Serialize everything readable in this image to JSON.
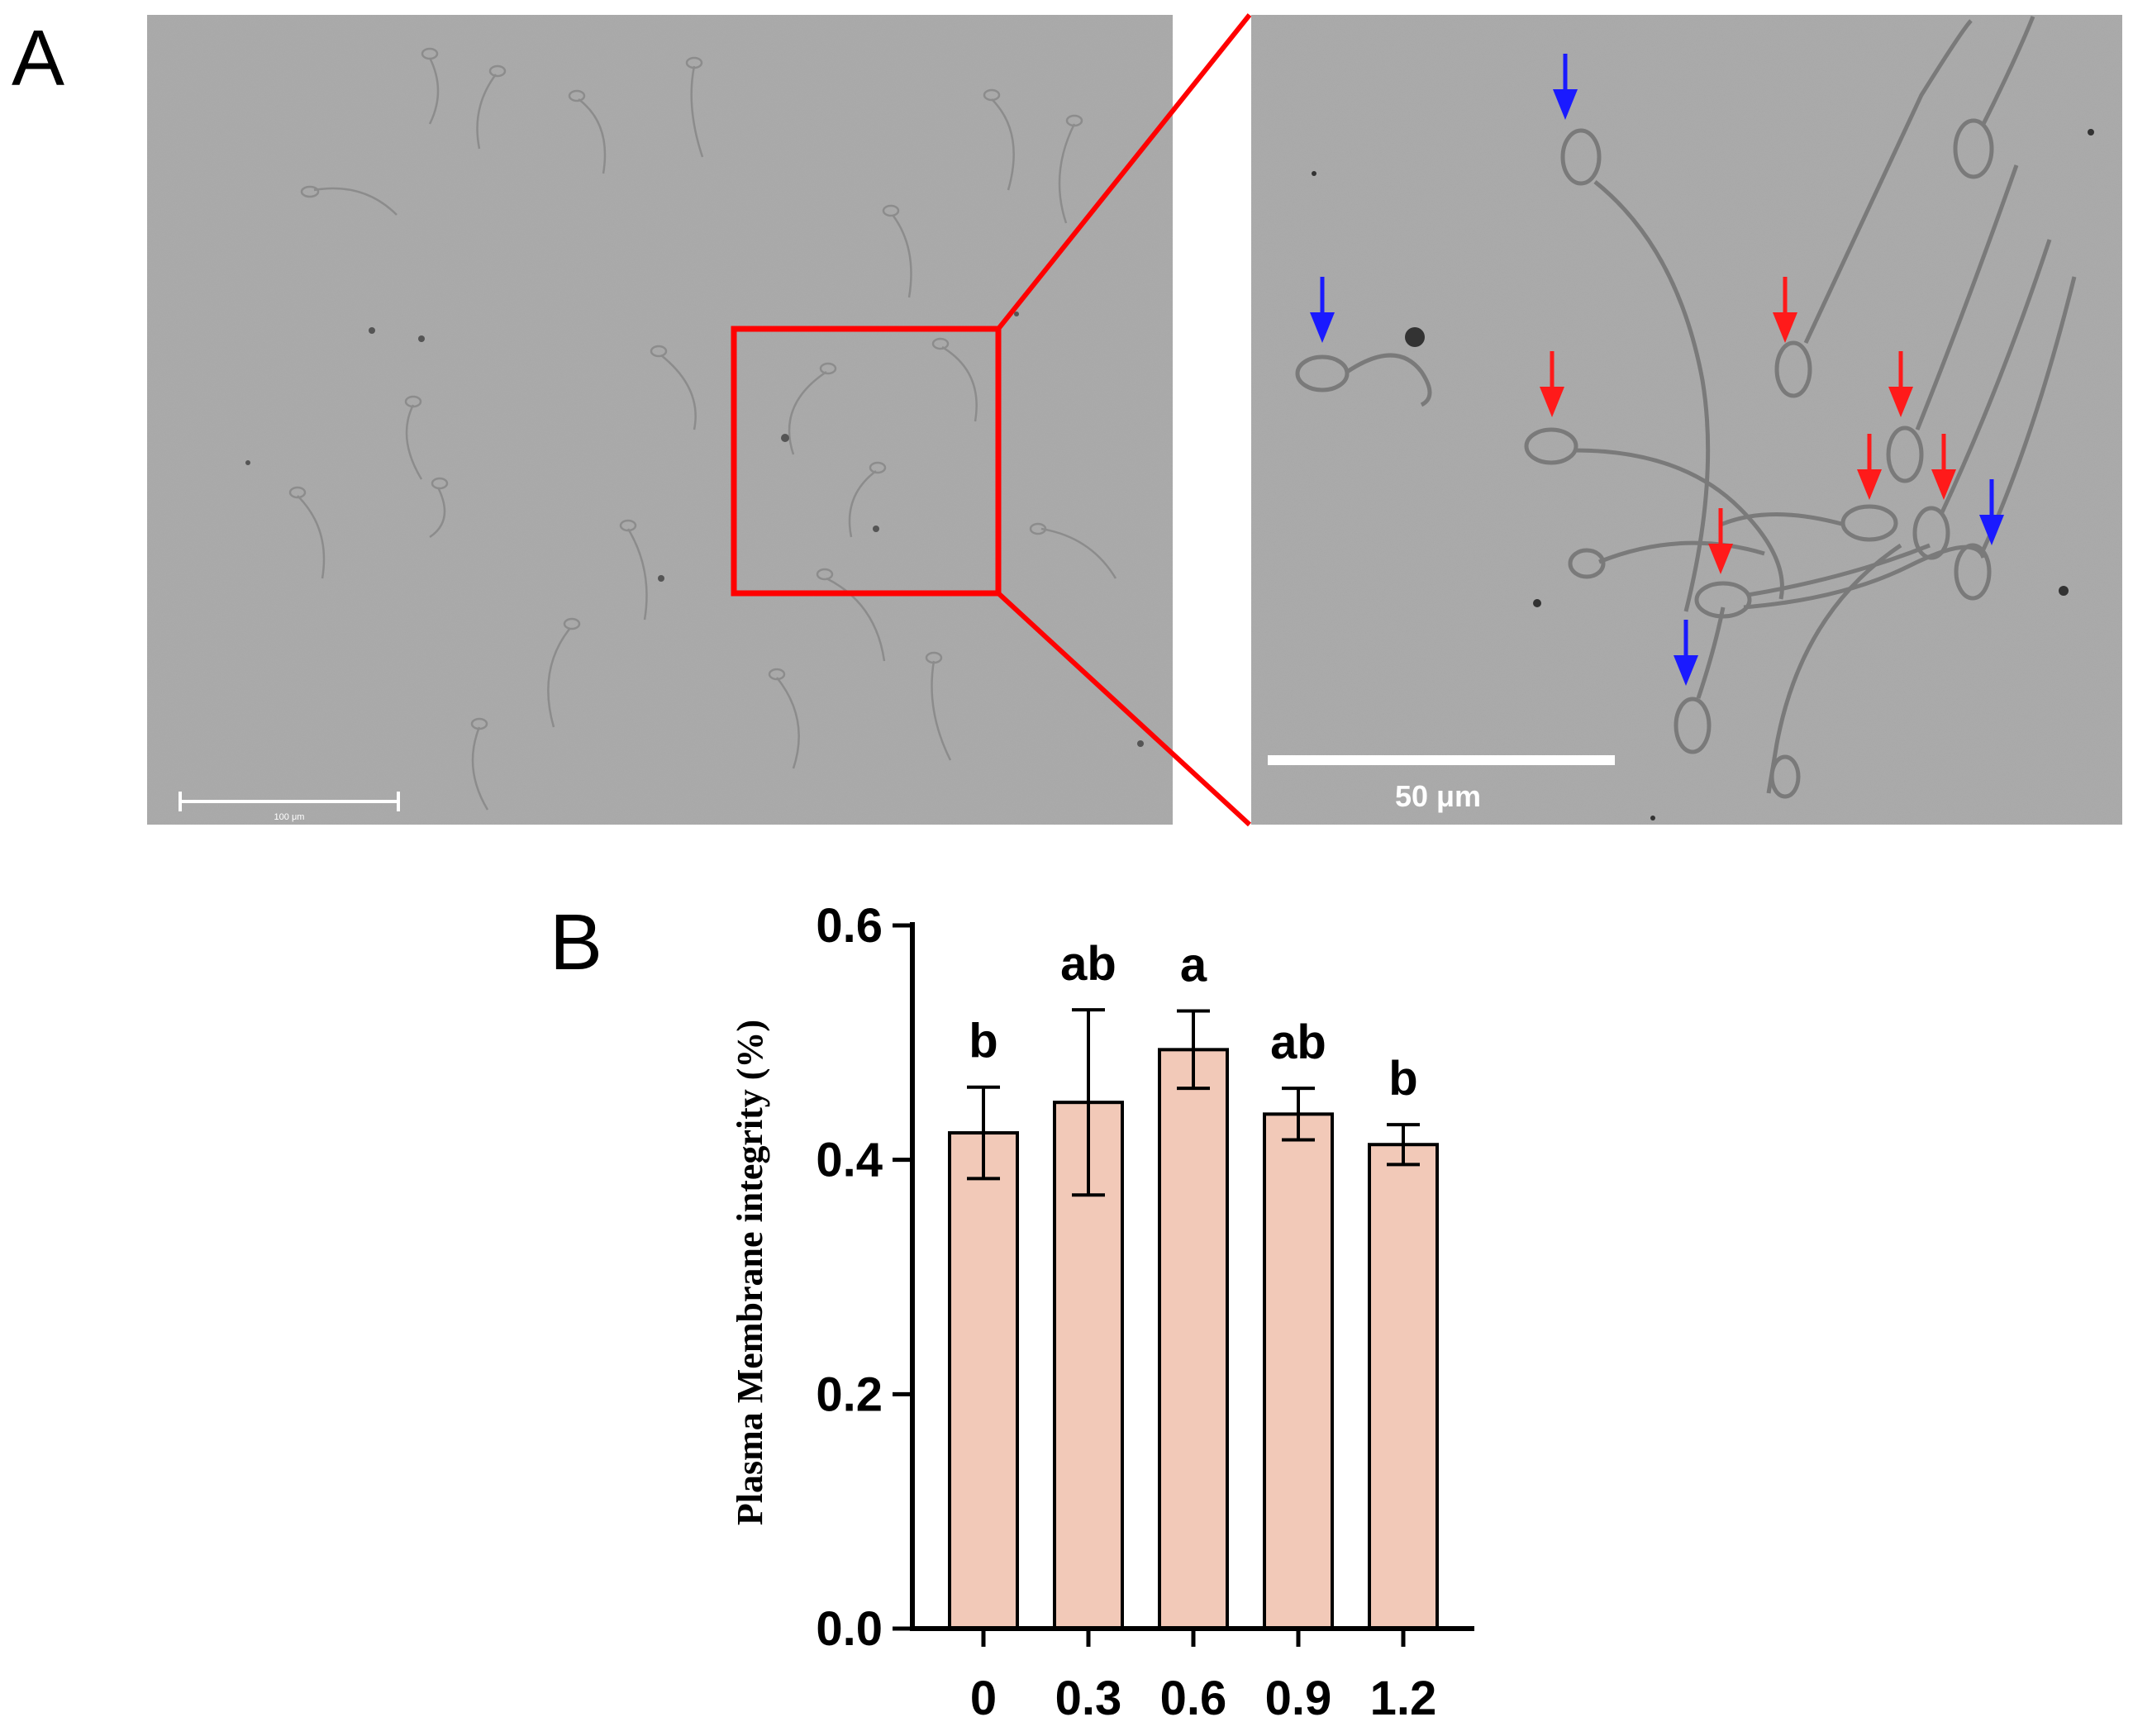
{
  "panel_a": {
    "label": "A",
    "scalebar_small_label": "100 μm",
    "scalebar_large_label": "50 μm",
    "colors": {
      "background": "#a9a9a9",
      "zoom_box": "#ff0000",
      "arrow_red": "#ff1a1a",
      "arrow_blue": "#1a1aff"
    },
    "arrow_colors": [
      "blue",
      "blue",
      "red",
      "red",
      "red",
      "red",
      "red",
      "red",
      "blue",
      "blue"
    ]
  },
  "panel_b": {
    "label": "B",
    "chart_data": {
      "type": "bar",
      "categories": [
        "0",
        "0.3",
        "0.6",
        "0.9",
        "1.2"
      ],
      "values": [
        0.423,
        0.449,
        0.494,
        0.439,
        0.413
      ],
      "errors": [
        0.039,
        0.079,
        0.033,
        0.022,
        0.017
      ],
      "significance": [
        "b",
        "ab",
        "a",
        "ab",
        "b"
      ],
      "xlabel": "",
      "ylabel": "Plasma Membrane integrity (%)",
      "ylim": [
        0,
        0.6
      ],
      "yticks": [
        "0.0",
        "0.2",
        "0.4",
        "0.6"
      ],
      "bar_color": "#f2c9b8",
      "grid": false
    }
  }
}
